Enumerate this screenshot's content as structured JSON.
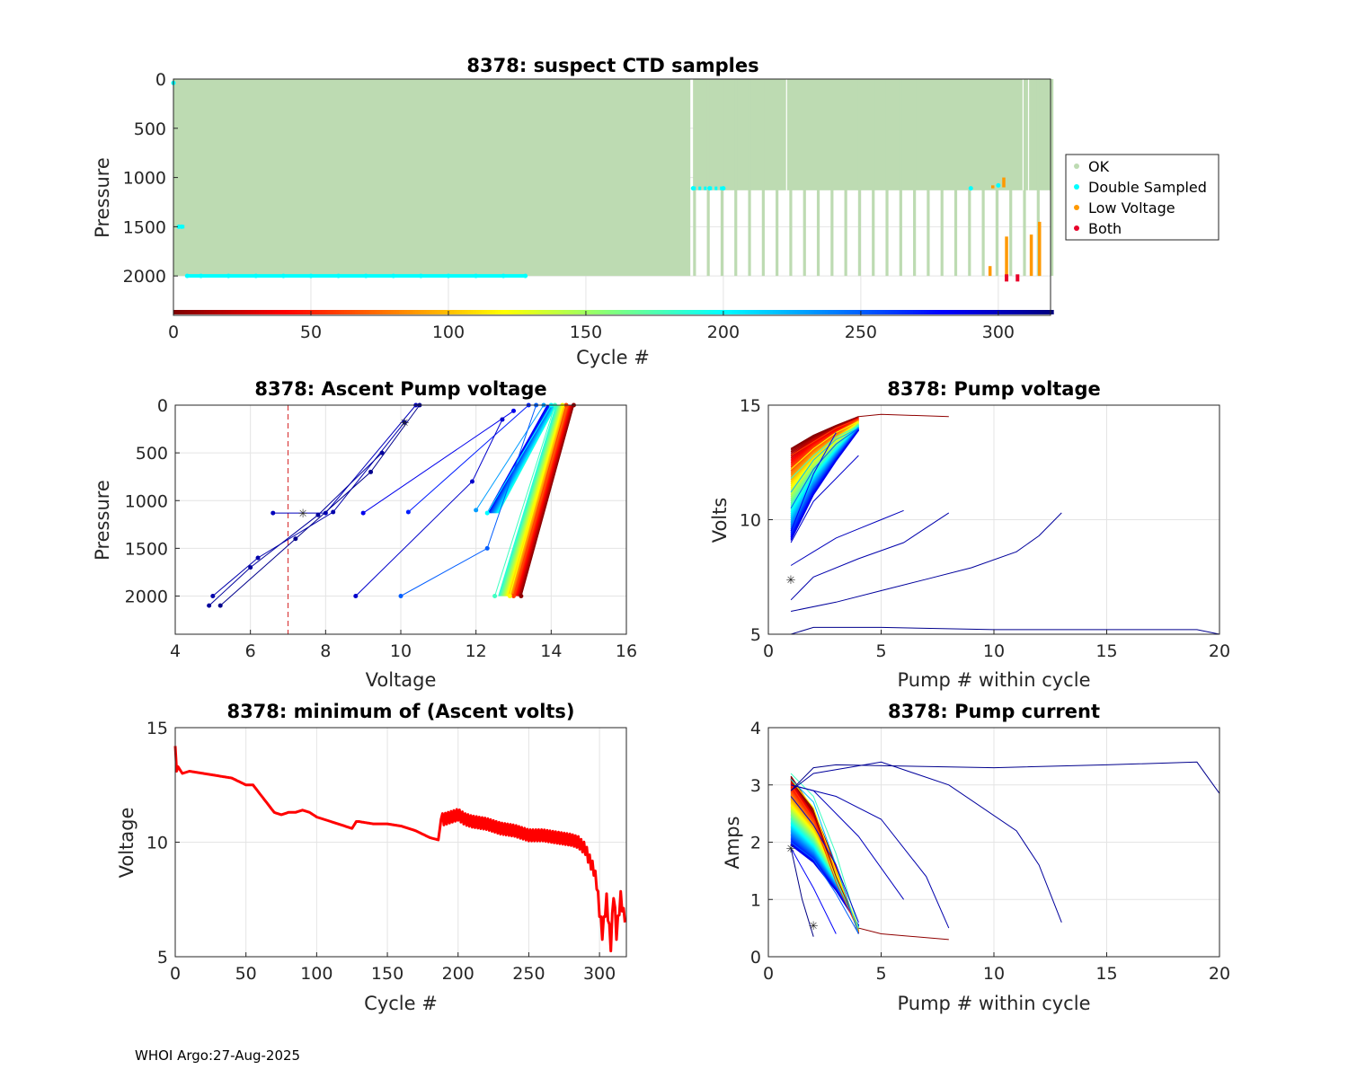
{
  "footer": "WHOI Argo:27-Aug-2025",
  "colors": {
    "ok": "#bddbb2",
    "double": "#00ffff",
    "low": "#ff9900",
    "both": "#e8002a",
    "threshold": "#d62728",
    "min_volts": "#ff0000",
    "marker": "#ffff00"
  },
  "chart_data": [
    {
      "id": "suspect",
      "type": "scatter",
      "title": "8378: suspect CTD samples",
      "xlabel": "Cycle #",
      "ylabel": "Pressure",
      "xlim": [
        0,
        319
      ],
      "ylim": [
        2400,
        0
      ],
      "xticks": [
        0,
        50,
        100,
        150,
        200,
        250,
        300
      ],
      "yticks": [
        0,
        500,
        1000,
        1500,
        2000
      ],
      "legend": [
        "OK",
        "Double Sampled",
        "Low Voltage",
        "Both"
      ],
      "legend_position": "outside-right",
      "series": [
        {
          "name": "OK",
          "x_range": [
            0,
            319
          ],
          "max_pressure_by_phase": [
            {
              "cycles": [
                0,
                188
              ],
              "max_pressure": 2000
            },
            {
              "cycles": [
                189,
                319
              ],
              "max_pressure": 1130,
              "deep_every_n_cycles": 5,
              "deep_pressure": 2000
            }
          ]
        },
        {
          "name": "Double Sampled",
          "x": [
            0,
            2,
            3,
            5,
            10,
            20,
            30,
            40,
            50,
            60,
            70,
            80,
            90,
            100,
            110,
            120,
            128,
            189,
            195,
            200,
            290,
            300
          ],
          "y": [
            40,
            1500,
            1500,
            2000,
            2000,
            2000,
            2000,
            2000,
            2000,
            2000,
            2000,
            2000,
            2000,
            2000,
            2000,
            2000,
            2000,
            1110,
            1110,
            1110,
            1110,
            1080
          ]
        },
        {
          "name": "Low Voltage",
          "segments": [
            {
              "x": 297,
              "y": [
                1900,
                2000
              ]
            },
            {
              "x": 298,
              "y": [
                1080,
                1110
              ]
            },
            {
              "x": 302,
              "y": [
                1000,
                1100
              ]
            },
            {
              "x": 303,
              "y": [
                1600,
                2000
              ]
            },
            {
              "x": 312,
              "y": [
                1580,
                2000
              ]
            },
            {
              "x": 315,
              "y": [
                1450,
                2000
              ]
            }
          ]
        },
        {
          "name": "Both",
          "x": [
            303,
            307
          ],
          "y": [
            2020,
            2020
          ]
        }
      ],
      "colorbar_cycles": [
        0,
        319
      ]
    },
    {
      "id": "ascent",
      "type": "line",
      "title": "8378: Ascent Pump voltage",
      "xlabel": "Voltage",
      "ylabel": "Pressure",
      "xlim": [
        4,
        16
      ],
      "ylim": [
        2400,
        0
      ],
      "xticks": [
        4,
        6,
        8,
        10,
        12,
        14,
        16
      ],
      "yticks": [
        0,
        500,
        1000,
        1500,
        2000
      ],
      "threshold_voltage": 7,
      "profiles": [
        {
          "cycle": 5,
          "points": [
            [
              13.2,
              2000
            ],
            [
              14.6,
              0
            ]
          ]
        },
        {
          "cycle": 60,
          "points": [
            [
              13.0,
              2000
            ],
            [
              14.4,
              0
            ]
          ]
        },
        {
          "cycle": 120,
          "points": [
            [
              12.9,
              2000
            ],
            [
              14.3,
              0
            ]
          ]
        },
        {
          "cycle": 180,
          "points": [
            [
              12.5,
              2000
            ],
            [
              14.1,
              0
            ]
          ]
        },
        {
          "cycle": 200,
          "points": [
            [
              12.3,
              1130
            ],
            [
              14.0,
              0
            ]
          ]
        },
        {
          "cycle": 230,
          "points": [
            [
              12.0,
              1100
            ],
            [
              13.8,
              0
            ]
          ]
        },
        {
          "cycle": 250,
          "points": [
            [
              10.0,
              2000
            ],
            [
              12.3,
              1500
            ],
            [
              13.6,
              0
            ]
          ]
        },
        {
          "cycle": 270,
          "points": [
            [
              10.2,
              1120
            ],
            [
              13.4,
              0
            ]
          ]
        },
        {
          "cycle": 285,
          "points": [
            [
              9.0,
              1130
            ],
            [
              13.0,
              60
            ]
          ]
        },
        {
          "cycle": 295,
          "points": [
            [
              8.8,
              2000
            ],
            [
              11.9,
              800
            ],
            [
              12.7,
              150
            ]
          ]
        },
        {
          "cycle": 300,
          "points": [
            [
              6.6,
              1130
            ],
            [
              8.0,
              1130
            ],
            [
              10.4,
              0
            ]
          ]
        },
        {
          "cycle": 305,
          "points": [
            [
              5.0,
              2000
            ],
            [
              6.2,
              1600
            ],
            [
              8.2,
              1120
            ],
            [
              10.1,
              180
            ]
          ]
        },
        {
          "cycle": 310,
          "points": [
            [
              4.9,
              2100
            ],
            [
              6.0,
              1700
            ],
            [
              7.8,
              1150
            ],
            [
              9.5,
              500
            ]
          ]
        },
        {
          "cycle": 315,
          "points": [
            [
              5.2,
              2100
            ],
            [
              7.2,
              1400
            ],
            [
              9.2,
              700
            ],
            [
              10.5,
              0
            ]
          ]
        }
      ]
    },
    {
      "id": "pumpv",
      "type": "line",
      "title": "8378: Pump voltage",
      "xlabel": "Pump # within cycle",
      "ylabel": "Volts",
      "xlim": [
        0,
        20
      ],
      "ylim": [
        5,
        15
      ],
      "xticks": [
        0,
        5,
        10,
        15,
        20
      ],
      "yticks": [
        5,
        10,
        15
      ],
      "series": [
        {
          "cycle": 5,
          "x": [
            1,
            2,
            3,
            4,
            5,
            8
          ],
          "y": [
            13.1,
            13.6,
            14.1,
            14.5,
            14.6,
            14.5
          ]
        },
        {
          "cycle": 60,
          "x": [
            1,
            2,
            3,
            4
          ],
          "y": [
            12.8,
            13.4,
            14.0,
            14.4
          ]
        },
        {
          "cycle": 120,
          "x": [
            1,
            2,
            3,
            4
          ],
          "y": [
            12.2,
            13.1,
            13.8,
            14.3
          ]
        },
        {
          "cycle": 180,
          "x": [
            1,
            2,
            3,
            4
          ],
          "y": [
            11.8,
            12.8,
            13.6,
            14.1
          ]
        },
        {
          "cycle": 220,
          "x": [
            1,
            2,
            3,
            4
          ],
          "y": [
            11.2,
            12.6,
            13.5,
            14.0
          ]
        },
        {
          "cycle": 250,
          "x": [
            1,
            2,
            3,
            4
          ],
          "y": [
            10.5,
            12.2,
            13.3,
            14.0
          ]
        },
        {
          "cycle": 280,
          "x": [
            1,
            2,
            3
          ],
          "y": [
            9.5,
            12.0,
            13.8
          ]
        },
        {
          "cycle": 295,
          "x": [
            1,
            2,
            3,
            4
          ],
          "y": [
            9.0,
            10.8,
            11.8,
            12.8
          ]
        },
        {
          "cycle": 300,
          "x": [
            1,
            2,
            3,
            4,
            5,
            6
          ],
          "y": [
            8.0,
            8.6,
            9.2,
            9.6,
            10.0,
            10.4
          ]
        },
        {
          "cycle": 305,
          "x": [
            1,
            2,
            4,
            6,
            8
          ],
          "y": [
            6.5,
            7.5,
            8.3,
            9.0,
            10.3
          ]
        },
        {
          "cycle": 310,
          "x": [
            1,
            3,
            5,
            7,
            9,
            11,
            12,
            13
          ],
          "y": [
            6.0,
            6.4,
            6.9,
            7.4,
            7.9,
            8.6,
            9.3,
            10.3
          ]
        },
        {
          "cycle": 315,
          "x": [
            1,
            2,
            5,
            10,
            15,
            19,
            20
          ],
          "y": [
            5.0,
            5.3,
            5.3,
            5.2,
            5.2,
            5.2,
            5.0
          ]
        }
      ]
    },
    {
      "id": "minv",
      "type": "line",
      "title": "8378: minimum of (Ascent volts)",
      "xlabel": "Cycle #",
      "ylabel": "Voltage",
      "xlim": [
        0,
        319
      ],
      "ylim": [
        5,
        15
      ],
      "xticks": [
        0,
        50,
        100,
        150,
        200,
        250,
        300
      ],
      "yticks": [
        5,
        10,
        15
      ],
      "x": [
        0,
        1,
        2,
        5,
        10,
        20,
        30,
        40,
        50,
        55,
        60,
        65,
        70,
        75,
        80,
        85,
        90,
        95,
        100,
        110,
        120,
        125,
        128,
        130,
        140,
        150,
        160,
        170,
        180,
        186,
        188,
        190,
        195,
        200,
        205,
        210,
        220,
        230,
        240,
        250,
        260,
        270,
        280,
        285,
        290,
        293,
        296,
        298,
        300,
        302,
        305,
        308,
        310,
        312,
        315,
        318
      ],
      "y": [
        14.2,
        13.1,
        13.3,
        13.0,
        13.1,
        13.0,
        12.9,
        12.8,
        12.5,
        12.5,
        12.1,
        11.7,
        11.3,
        11.2,
        11.3,
        11.3,
        11.4,
        11.3,
        11.1,
        10.9,
        10.7,
        10.6,
        10.9,
        10.9,
        10.8,
        10.8,
        10.7,
        10.5,
        10.2,
        10.1,
        11.0,
        11.0,
        11.1,
        11.2,
        11.0,
        10.9,
        10.8,
        10.6,
        10.5,
        10.3,
        10.3,
        10.2,
        10.1,
        10.0,
        9.7,
        9.2,
        8.8,
        8.2,
        7.0,
        6.0,
        7.5,
        5.5,
        7.8,
        6.0,
        7.6,
        6.5
      ]
    },
    {
      "id": "pumpi",
      "type": "line",
      "title": "8378: Pump current",
      "xlabel": "Pump # within cycle",
      "ylabel": "Amps",
      "xlim": [
        0,
        20
      ],
      "ylim": [
        0,
        4
      ],
      "xticks": [
        0,
        5,
        10,
        15,
        20
      ],
      "yticks": [
        0,
        1,
        2,
        3,
        4
      ],
      "series": [
        {
          "cycle": 5,
          "x": [
            1,
            2,
            3,
            4,
            5,
            8
          ],
          "y": [
            3.1,
            2.5,
            1.4,
            0.5,
            0.4,
            0.3
          ]
        },
        {
          "cycle": 60,
          "x": [
            1,
            2,
            3,
            4
          ],
          "y": [
            3.0,
            2.4,
            1.3,
            0.45
          ]
        },
        {
          "cycle": 120,
          "x": [
            1,
            2,
            3,
            4
          ],
          "y": [
            3.1,
            2.6,
            1.5,
            0.5
          ]
        },
        {
          "cycle": 180,
          "x": [
            1,
            2,
            3,
            4
          ],
          "y": [
            3.2,
            2.8,
            1.8,
            0.5
          ]
        },
        {
          "cycle": 220,
          "x": [
            1,
            2,
            3,
            4
          ],
          "y": [
            3.1,
            2.7,
            1.6,
            0.4
          ]
        },
        {
          "cycle": 250,
          "x": [
            1,
            2,
            3,
            4
          ],
          "y": [
            2.0,
            1.7,
            1.1,
            0.4
          ]
        },
        {
          "cycle": 280,
          "x": [
            1,
            2,
            3
          ],
          "y": [
            1.9,
            1.2,
            0.4
          ]
        },
        {
          "cycle": 295,
          "x": [
            1,
            2,
            3,
            4
          ],
          "y": [
            2.8,
            2.3,
            1.6,
            0.6
          ]
        },
        {
          "cycle": 300,
          "x": [
            1,
            2,
            4,
            6
          ],
          "y": [
            3.0,
            2.9,
            2.1,
            1.0
          ]
        },
        {
          "cycle": 305,
          "x": [
            1,
            3,
            5,
            7,
            8
          ],
          "y": [
            3.0,
            2.8,
            2.4,
            1.4,
            0.5
          ]
        },
        {
          "cycle": 310,
          "x": [
            1,
            2,
            5,
            8,
            11,
            12,
            13
          ],
          "y": [
            2.9,
            3.2,
            3.4,
            3.0,
            2.2,
            1.6,
            0.6
          ]
        },
        {
          "cycle": 315,
          "x": [
            1,
            2,
            3,
            10,
            15,
            19,
            20
          ],
          "y": [
            2.9,
            3.3,
            3.35,
            3.3,
            3.35,
            3.4,
            2.85
          ]
        },
        {
          "cycle": 318,
          "x": [
            1,
            1.5,
            2
          ],
          "y": [
            1.9,
            1.0,
            0.35
          ]
        }
      ]
    }
  ]
}
